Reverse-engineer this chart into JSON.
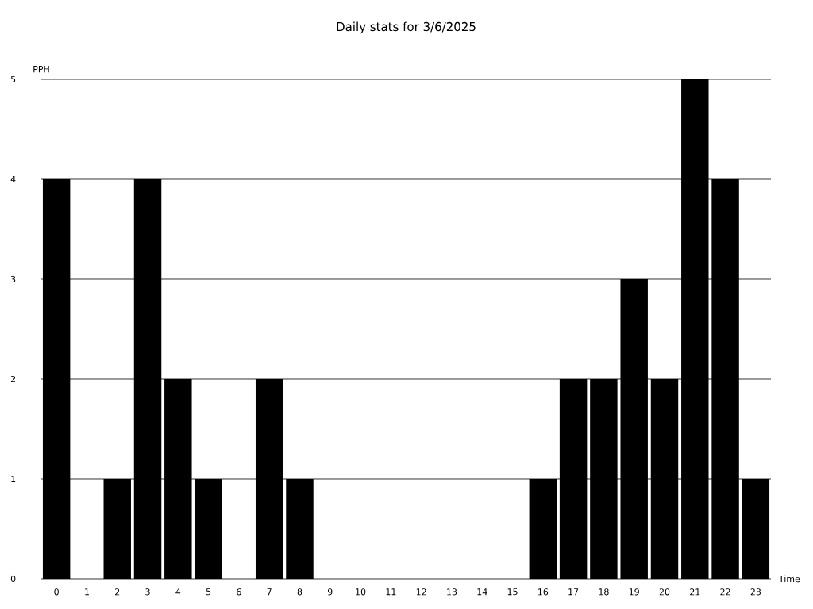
{
  "chart_data": {
    "type": "bar",
    "title": "Daily stats for 3/6/2025",
    "xlabel": "Time",
    "ylabel": "PPH",
    "categories": [
      "0",
      "1",
      "2",
      "3",
      "4",
      "5",
      "6",
      "7",
      "8",
      "9",
      "10",
      "11",
      "12",
      "13",
      "14",
      "15",
      "16",
      "17",
      "18",
      "19",
      "20",
      "21",
      "22",
      "23"
    ],
    "values": [
      4,
      0,
      1,
      4,
      2,
      1,
      0,
      2,
      1,
      0,
      0,
      0,
      0,
      0,
      0,
      0,
      1,
      2,
      2,
      3,
      2,
      5,
      4,
      1
    ],
    "color": "#000000",
    "ylim": [
      0,
      5
    ],
    "yticks": [
      0,
      1,
      2,
      3,
      4,
      5
    ],
    "grid": "y"
  }
}
